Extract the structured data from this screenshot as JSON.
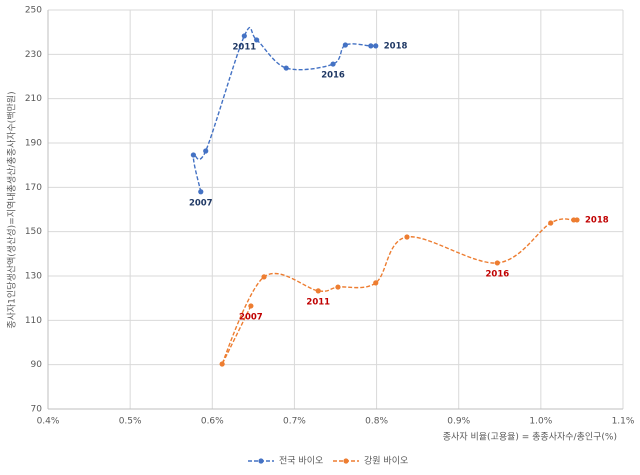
{
  "chart_data": {
    "type": "scatter_smooth",
    "y_label": "종사자1인당생산액(생산성)=지역내총생산/총종사자수(백만원)",
    "x_label": "종사자 비율(고용율) = 총종사자수/총인구(%)",
    "xlim": [
      0.4,
      1.1
    ],
    "xticks": [
      {
        "value": 0.4,
        "label": "0.4%"
      },
      {
        "value": 0.5,
        "label": "0.5%"
      },
      {
        "value": 0.6,
        "label": "0.6%"
      },
      {
        "value": 0.7,
        "label": "0.7%"
      },
      {
        "value": 0.8,
        "label": "0.8%"
      },
      {
        "value": 0.9,
        "label": "0.9%"
      },
      {
        "value": 1.0,
        "label": "1.0%"
      },
      {
        "value": 1.1,
        "label": "1.1%"
      }
    ],
    "ylim": [
      70,
      250
    ],
    "yticks": [
      70,
      90,
      110,
      130,
      150,
      170,
      190,
      210,
      230,
      250
    ],
    "grid": true,
    "legend": "bottom",
    "series": [
      {
        "name": "전국 바이오",
        "color": "#4472c4",
        "label_color": "#1f3864",
        "x": [
          0.586,
          0.577,
          0.592,
          0.639,
          0.654,
          0.69,
          0.747,
          0.762,
          0.793,
          0.799
        ],
        "y": [
          168,
          184.6,
          186.4,
          238.3,
          236.5,
          223.8,
          225.6,
          234.2,
          233.8,
          233.8
        ],
        "point_labels": [
          "2007",
          null,
          null,
          "2011",
          null,
          null,
          "2016",
          null,
          null,
          "2018"
        ]
      },
      {
        "name": "강원 바이오",
        "color": "#ed7d31",
        "label_color": "#c00000",
        "x": [
          0.647,
          0.612,
          0.663,
          0.729,
          0.753,
          0.799,
          0.837,
          0.947,
          1.012,
          1.04,
          1.044
        ],
        "y": [
          116.5,
          90.3,
          129.6,
          123.3,
          125.0,
          126.9,
          147.6,
          135.9,
          153.9,
          155.3,
          155.3
        ],
        "point_labels": [
          "2007",
          null,
          null,
          "2011",
          null,
          null,
          null,
          "2016",
          null,
          null,
          "2018"
        ]
      }
    ]
  }
}
